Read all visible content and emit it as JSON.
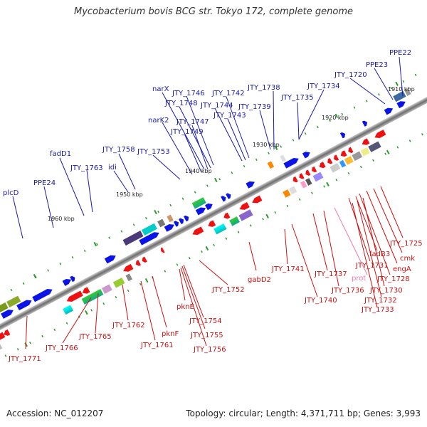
{
  "title": "Mycobacterium bovis BCG str. Tokyo 172, complete genome",
  "footer": {
    "accession": "Accession: NC_012207",
    "topology": "Topology: circular; Length: 4,371,711 bp; Genes: 3,993"
  },
  "kbp_ticks": [
    "1910 kbp",
    "1920 kbp",
    "1930 kbp",
    "1940 kbp",
    "1950 kbp",
    "1960 kbp"
  ],
  "labels_forward": [
    "PPE22",
    "PPE23",
    "JTY_1720",
    "JTY_1734",
    "JTY_1735",
    "JTY_1738",
    "JTY_1739",
    "JTY_1742",
    "JTY_1743",
    "JTY_1744",
    "JTY_1746",
    "JTY_1748",
    "narX",
    "narK2",
    "JTY_1747",
    "JTY_1749",
    "JTY_1753",
    "JTY_1758",
    "idi",
    "JTY_1763",
    "fadD1",
    "PPE24",
    "plcD"
  ],
  "labels_reverse": [
    "JTY_1725",
    "cmk",
    "engA",
    "JTY_1728",
    "fadB3",
    "JTY_1731",
    "JTY_1730",
    "JTY_1732",
    "JTY_1733",
    "prot",
    "JTY_1736",
    "JTY_1737",
    "JTY_1740",
    "JTY_1741",
    "gabD2",
    "JTY_1752",
    "JTY_1754",
    "JTY_1755",
    "JTY_1756",
    "pknE",
    "pknF",
    "JTY_1761",
    "JTY_1762",
    "JTY_1765",
    "JTY_1766",
    "JTY_1771"
  ],
  "colors": {
    "forward_gene": "#0a14e6",
    "reverse_gene": "#ee1111",
    "forward_label": "#1a1aa8",
    "reverse_label": "#cc1111",
    "pseudo_label": "#f27aa8",
    "backbone": "#777777",
    "tick": "#2a9a2a"
  }
}
